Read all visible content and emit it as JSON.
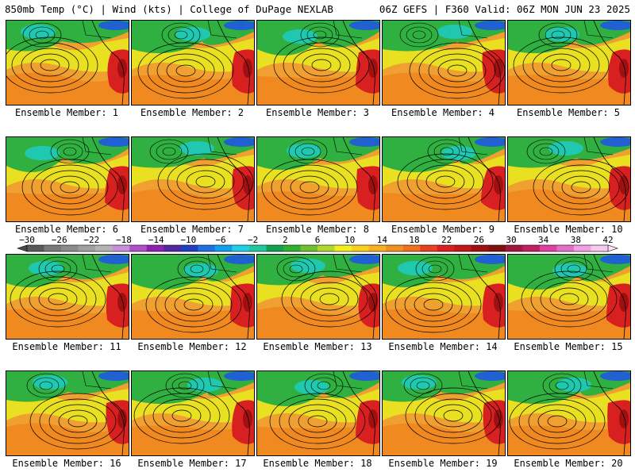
{
  "header": {
    "left_title": "850mb Temp (°C) | Wind (kts) | College of DuPage NEXLAB",
    "right_title": "06Z GEFS | F360 Valid: 06Z MON JUN 23 2025"
  },
  "colorbar": {
    "tick_labels": [
      "−30",
      "−26",
      "−22",
      "−18",
      "−14",
      "−10",
      "−6",
      "−2",
      "2",
      "6",
      "10",
      "14",
      "18",
      "22",
      "26",
      "30",
      "34",
      "38",
      "42"
    ],
    "colors": [
      "#5a5a5a",
      "#7a7a7a",
      "#8c8c8c",
      "#a0a0a0",
      "#b4b4b4",
      "#c890d8",
      "#b050c8",
      "#9020b0",
      "#5028a0",
      "#2040c0",
      "#2070e0",
      "#10a0f0",
      "#20d0e8",
      "#20c8a0",
      "#10a050",
      "#30b030",
      "#70c030",
      "#b0d830",
      "#f0f020",
      "#f8d020",
      "#f8b020",
      "#f09020",
      "#f07020",
      "#e84020",
      "#d82020",
      "#c01818",
      "#a01010",
      "#801010",
      "#a01840",
      "#c02060",
      "#e040a0",
      "#e070c8",
      "#f0a0e0",
      "#f8c8f0"
    ]
  },
  "members": [
    {
      "label": "Ensemble Member: 1"
    },
    {
      "label": "Ensemble Member: 2"
    },
    {
      "label": "Ensemble Member: 3"
    },
    {
      "label": "Ensemble Member: 4"
    },
    {
      "label": "Ensemble Member: 5"
    },
    {
      "label": "Ensemble Member: 6"
    },
    {
      "label": "Ensemble Member: 7"
    },
    {
      "label": "Ensemble Member: 8"
    },
    {
      "label": "Ensemble Member: 9"
    },
    {
      "label": "Ensemble Member: 10"
    },
    {
      "label": "Ensemble Member: 11"
    },
    {
      "label": "Ensemble Member: 12"
    },
    {
      "label": "Ensemble Member: 13"
    },
    {
      "label": "Ensemble Member: 14"
    },
    {
      "label": "Ensemble Member: 15"
    },
    {
      "label": "Ensemble Member: 16"
    },
    {
      "label": "Ensemble Member: 17"
    },
    {
      "label": "Ensemble Member: 18"
    },
    {
      "label": "Ensemble Member: 19"
    },
    {
      "label": "Ensemble Member: 20"
    }
  ]
}
